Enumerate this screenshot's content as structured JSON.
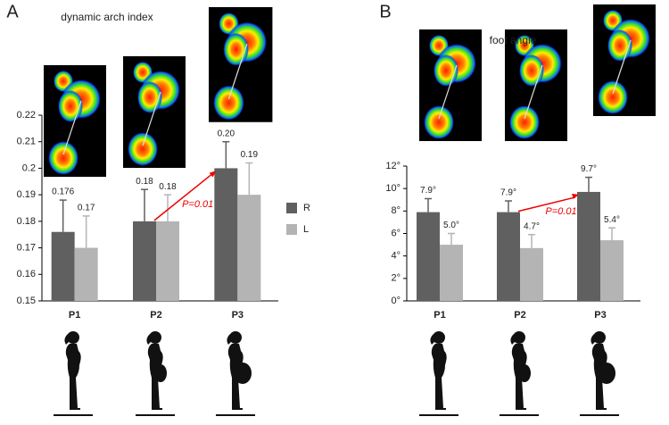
{
  "chart_data": [
    {
      "type": "bar",
      "panel_label": "A",
      "title": "dynamic arch index",
      "categories": [
        "P1",
        "P2",
        "P3"
      ],
      "series": [
        {
          "name": "R",
          "color": "#606060",
          "values": [
            0.176,
            0.18,
            0.2
          ],
          "errors": [
            0.012,
            0.012,
            0.01
          ],
          "value_labels": [
            "0.176",
            "0.18",
            "0.20"
          ]
        },
        {
          "name": "L",
          "color": "#b4b4b4",
          "values": [
            0.17,
            0.18,
            0.19
          ],
          "errors": [
            0.012,
            0.01,
            0.012
          ],
          "value_labels": [
            "0.17",
            "0.18",
            "0.19"
          ]
        }
      ],
      "ylim": [
        0.15,
        0.22
      ],
      "yticks": [
        0.15,
        0.16,
        0.17,
        0.18,
        0.19,
        0.2,
        0.21,
        0.22
      ],
      "annotation": "P=0.01",
      "legend": "right"
    },
    {
      "type": "bar",
      "panel_label": "B",
      "title": "foot angle",
      "categories": [
        "P1",
        "P2",
        "P3"
      ],
      "series": [
        {
          "name": "R",
          "color": "#606060",
          "values": [
            7.9,
            7.9,
            9.7
          ],
          "errors": [
            1.2,
            1.0,
            1.3
          ],
          "value_labels": [
            "7.9°",
            "7.9°",
            "9.7°"
          ]
        },
        {
          "name": "L",
          "color": "#b4b4b4",
          "values": [
            5.0,
            4.7,
            5.4
          ],
          "errors": [
            1.0,
            1.2,
            1.1
          ],
          "value_labels": [
            "5.0°",
            "4.7°",
            "5.4°"
          ]
        }
      ],
      "ylim": [
        0,
        12
      ],
      "yticks": [
        {
          "value": 0,
          "label": "0°"
        },
        {
          "value": 2,
          "label": "2°"
        },
        {
          "value": 4,
          "label": "4°"
        },
        {
          "value": 6,
          "label": "6°"
        },
        {
          "value": 8,
          "label": "8°"
        },
        {
          "value": 10,
          "label": "10°"
        },
        {
          "value": 12,
          "label": "12°"
        }
      ],
      "annotation": "P=0.01"
    }
  ]
}
